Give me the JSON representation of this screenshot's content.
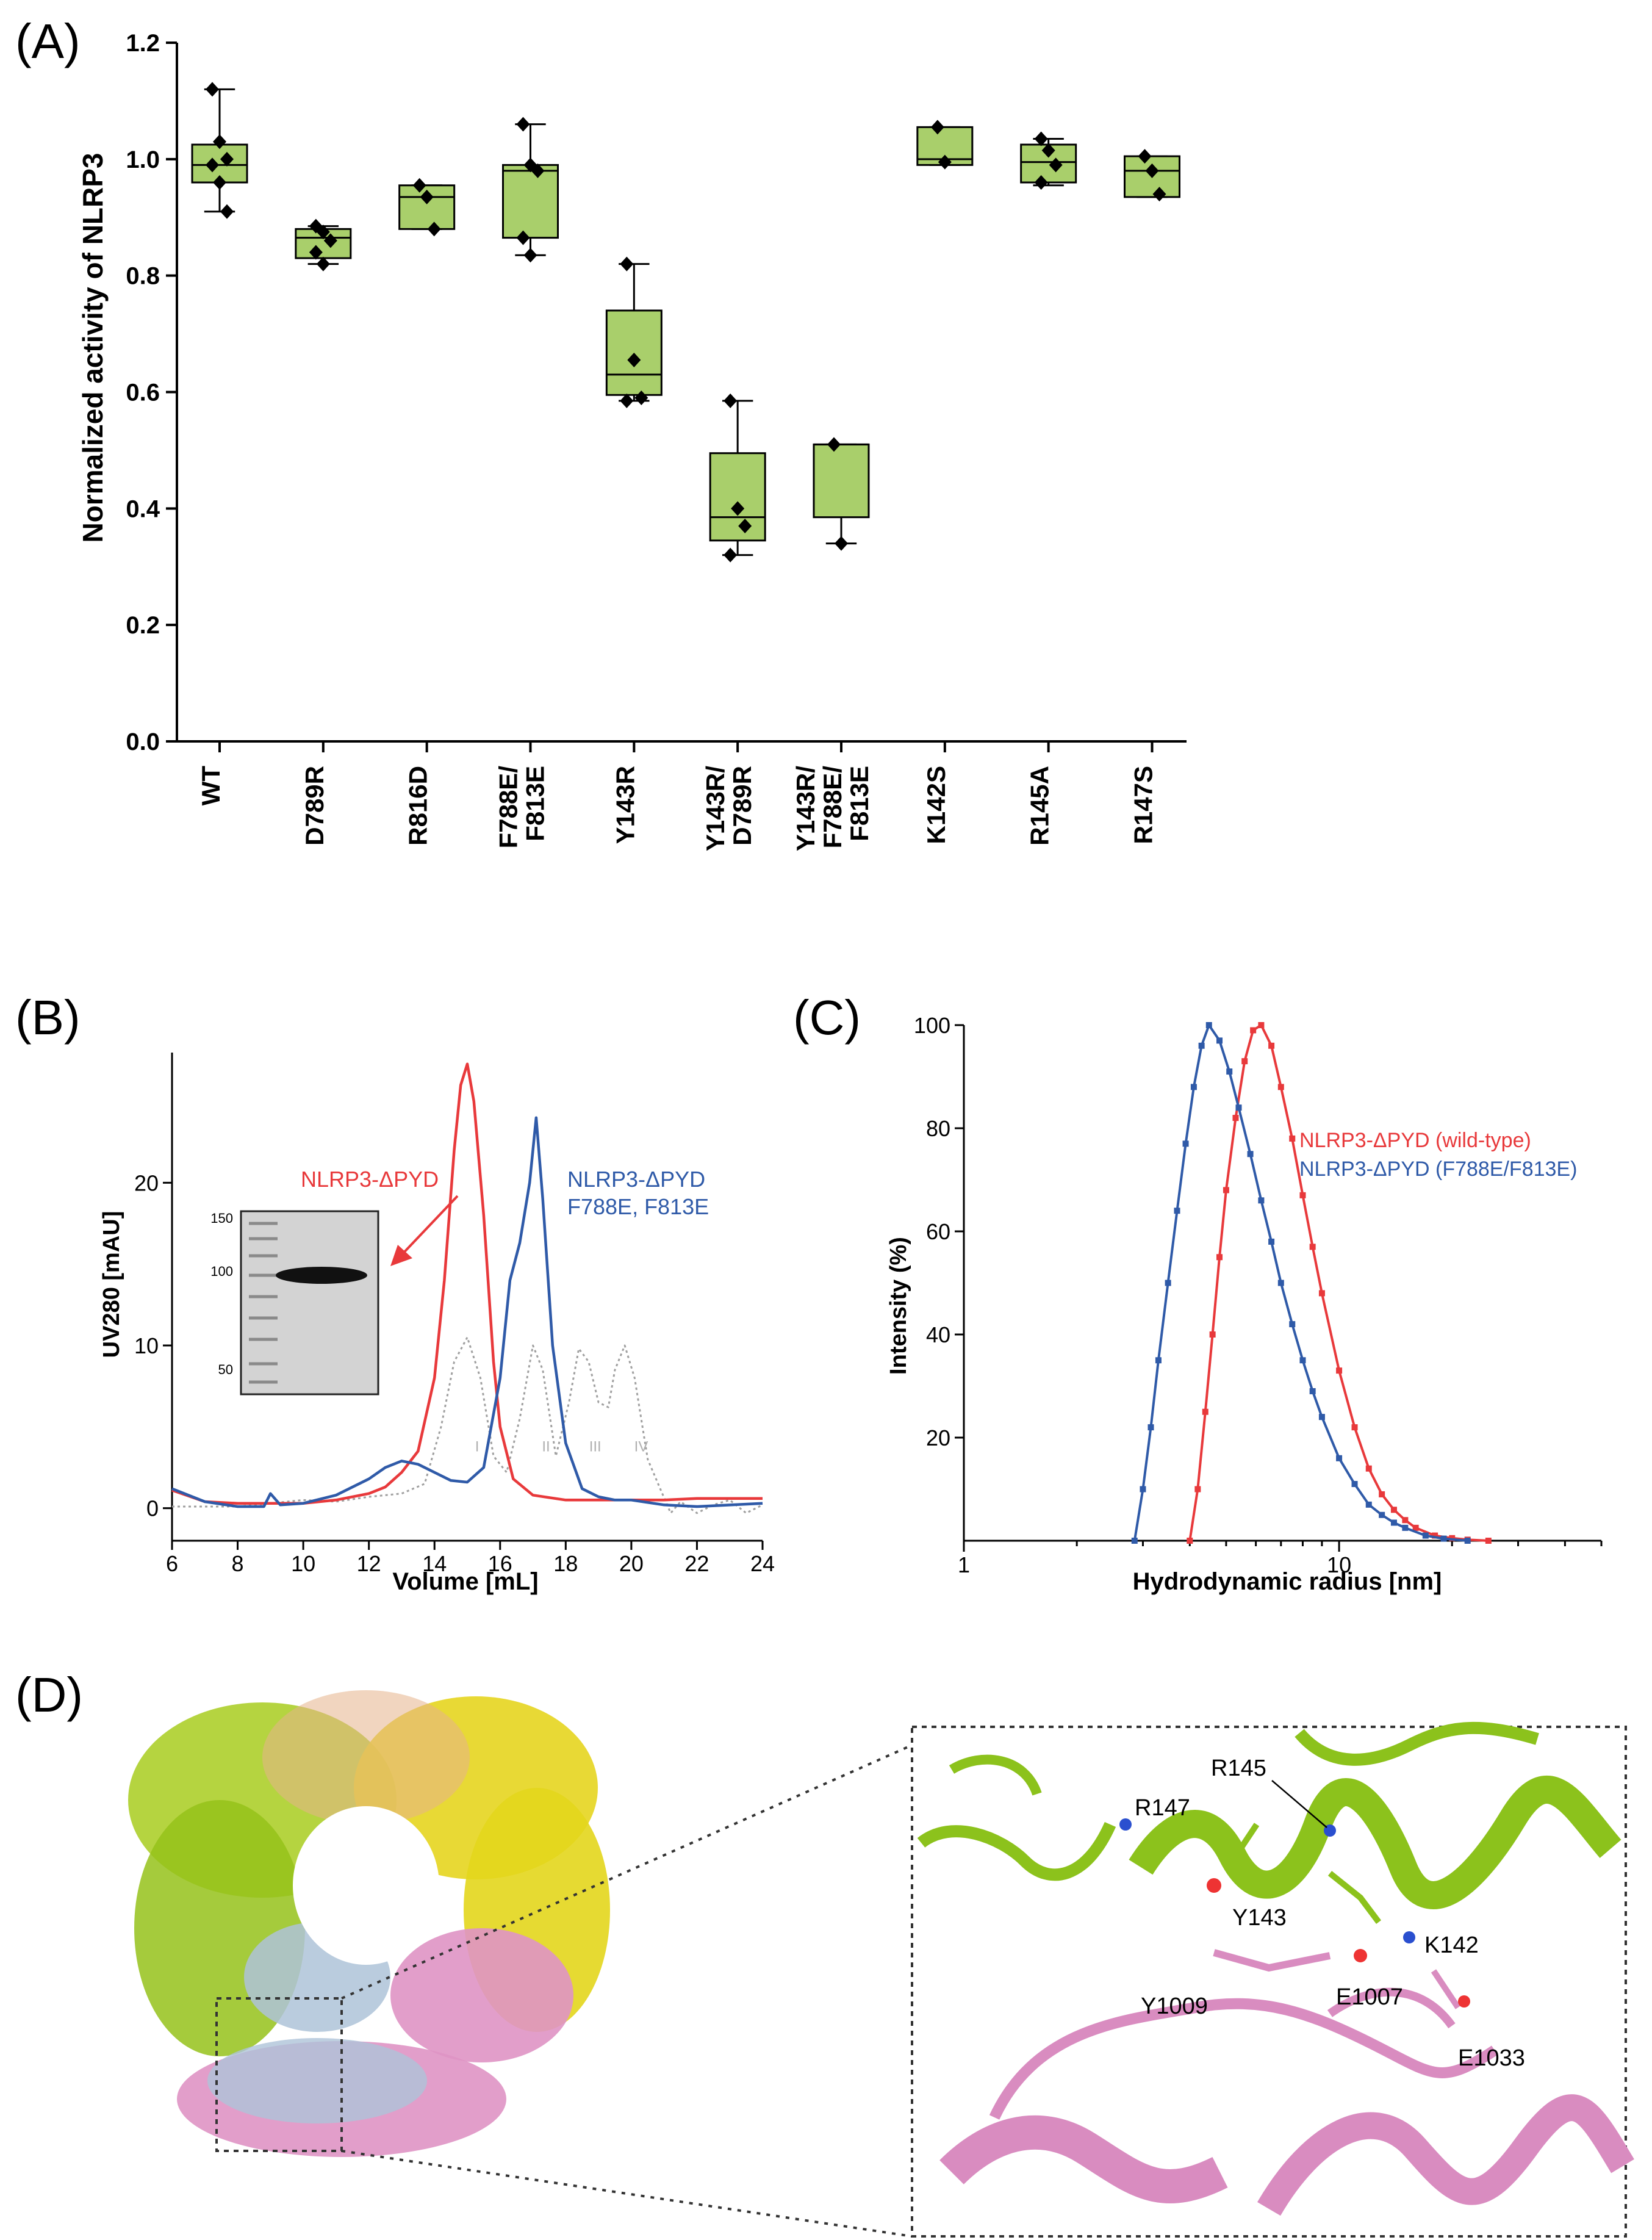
{
  "panels": {
    "a": "(A)",
    "b": "(B)",
    "c": "(C)",
    "d": "(D)"
  },
  "colors": {
    "box_fill": "#a9cf6b",
    "wt": "#e8393b",
    "mut": "#2f5aa8",
    "marker_ref": "#a0a0a0",
    "green": "#8cc21c",
    "pink": "#d98cc0"
  },
  "chart_data": [
    {
      "type": "box",
      "panel": "A",
      "ylabel": "Normalized activity of NLRP3",
      "ylim": [
        0.0,
        1.2
      ],
      "yticks": [
        "0.0",
        "0.2",
        "0.4",
        "0.6",
        "0.8",
        "1.0",
        "1.2"
      ],
      "categories": [
        "WT",
        "D789R",
        "R816D",
        "F788E/\nF813E",
        "Y143R",
        "Y143R/\nD789R",
        "Y143R/\nF788E/\nF813E",
        "K142S",
        "R145A",
        "R147S"
      ],
      "boxes": [
        {
          "min": 0.91,
          "q1": 0.96,
          "median": 0.99,
          "q3": 1.025,
          "max": 1.12,
          "points": [
            1.12,
            1.03,
            1.0,
            0.99,
            0.96,
            0.91
          ]
        },
        {
          "min": 0.82,
          "q1": 0.83,
          "median": 0.865,
          "q3": 0.88,
          "max": 0.885,
          "points": [
            0.885,
            0.875,
            0.86,
            0.84,
            0.82
          ]
        },
        {
          "min": 0.88,
          "q1": 0.88,
          "median": 0.935,
          "q3": 0.955,
          "max": 0.955,
          "points": [
            0.955,
            0.935,
            0.88
          ]
        },
        {
          "min": 0.835,
          "q1": 0.865,
          "median": 0.98,
          "q3": 0.99,
          "max": 1.06,
          "points": [
            1.06,
            0.99,
            0.98,
            0.865,
            0.835
          ]
        },
        {
          "min": 0.585,
          "q1": 0.595,
          "median": 0.63,
          "q3": 0.74,
          "max": 0.82,
          "points": [
            0.82,
            0.655,
            0.59,
            0.585
          ]
        },
        {
          "min": 0.32,
          "q1": 0.345,
          "median": 0.385,
          "q3": 0.495,
          "max": 0.585,
          "points": [
            0.585,
            0.4,
            0.37,
            0.32
          ]
        },
        {
          "min": 0.34,
          "q1": 0.385,
          "median": 0.51,
          "q3": 0.51,
          "max": 0.51,
          "points": [
            0.51,
            0.34
          ]
        },
        {
          "min": 0.99,
          "q1": 0.99,
          "median": 1.0,
          "q3": 1.055,
          "max": 1.055,
          "points": [
            1.055,
            0.995
          ]
        },
        {
          "min": 0.955,
          "q1": 0.96,
          "median": 0.995,
          "q3": 1.025,
          "max": 1.035,
          "points": [
            1.035,
            1.015,
            0.99,
            0.96
          ]
        },
        {
          "min": 0.935,
          "q1": 0.935,
          "median": 0.98,
          "q3": 1.005,
          "max": 1.005,
          "points": [
            1.005,
            0.98,
            0.94
          ]
        }
      ]
    },
    {
      "type": "line",
      "panel": "B",
      "xlabel": "Volume [mL]",
      "ylabel": "UV280 [mAU]",
      "xlim": [
        6,
        24
      ],
      "ylim": [
        -2,
        28
      ],
      "xticks": [
        6,
        8,
        10,
        12,
        14,
        16,
        18,
        20,
        22,
        24
      ],
      "yticks": [
        0,
        10,
        20
      ],
      "series": [
        {
          "name": "NLRP3-ΔPYD",
          "style": "solid",
          "x": [
            6,
            7,
            8,
            9,
            10,
            11,
            12,
            12.5,
            13,
            13.5,
            14,
            14.3,
            14.6,
            14.8,
            15,
            15.2,
            15.5,
            15.8,
            16,
            16.4,
            17,
            18,
            19,
            20,
            21,
            22,
            23,
            24
          ],
          "y": [
            1.1,
            0.4,
            0.3,
            0.3,
            0.3,
            0.5,
            0.9,
            1.3,
            2.2,
            3.5,
            8,
            14,
            22,
            26,
            27.3,
            25,
            18,
            9,
            5,
            1.8,
            0.8,
            0.5,
            0.5,
            0.5,
            0.5,
            0.6,
            0.6,
            0.6
          ]
        },
        {
          "name": "NLRP3-ΔPYD F788E, F813E",
          "style": "solid",
          "x": [
            6,
            7,
            8,
            8.8,
            9,
            9.3,
            10,
            11,
            12,
            12.5,
            13,
            13.5,
            14,
            14.5,
            15,
            15.5,
            16,
            16.3,
            16.6,
            16.9,
            17.1,
            17.3,
            17.6,
            18,
            18.5,
            19,
            19.5,
            20,
            21,
            22,
            24
          ],
          "y": [
            1.2,
            0.4,
            0.1,
            0.1,
            0.9,
            0.2,
            0.3,
            0.8,
            1.8,
            2.5,
            2.9,
            2.7,
            2.2,
            1.7,
            1.6,
            2.5,
            8,
            14,
            16.3,
            20,
            24,
            19,
            10,
            4,
            1.2,
            0.7,
            0.5,
            0.5,
            0.2,
            0.1,
            0.3
          ]
        },
        {
          "name": "markers",
          "style": "dotted",
          "x": [
            6,
            8,
            10,
            11,
            12,
            13,
            13.7,
            14.2,
            14.6,
            15,
            15.4,
            15.8,
            16.2,
            16.6,
            17,
            17.3,
            17.7,
            18.1,
            18.4,
            18.7,
            19,
            19.3,
            19.5,
            19.8,
            20.1,
            20.5,
            20.9,
            21.2,
            21.5,
            22,
            22.5,
            23,
            23.5,
            24
          ],
          "y": [
            0.1,
            0.1,
            0.5,
            0.4,
            0.7,
            0.9,
            1.5,
            5,
            9,
            10.5,
            8,
            3.2,
            2.2,
            5.5,
            10,
            8.5,
            3.2,
            6.5,
            9.8,
            9,
            6.5,
            6.2,
            8.5,
            10,
            8,
            3,
            1.1,
            -0.3,
            0.4,
            -0.3,
            0.2,
            0.5,
            -0.3,
            0.2
          ]
        }
      ],
      "labels": {
        "wt": "NLRP3-ΔPYD",
        "mut_1": "NLRP3-ΔPYD",
        "mut_2": "F788E, F813E"
      },
      "marker_labels": [
        "I",
        "II",
        "III",
        "IV"
      ],
      "gel_ladder": [
        "150",
        "100",
        "50"
      ]
    },
    {
      "type": "line",
      "panel": "C",
      "xlabel": "Hydrodynamic radius [nm]",
      "ylabel": "Intensity (%)",
      "xscale": "log",
      "xlim": [
        1,
        50
      ],
      "ylim": [
        0,
        100
      ],
      "xticks": [
        1,
        10
      ],
      "yticks": [
        20,
        40,
        60,
        80,
        100
      ],
      "series": [
        {
          "name": "NLRP3-ΔPYD (wild-type)",
          "x": [
            4.0,
            4.2,
            4.4,
            4.6,
            4.8,
            5.0,
            5.3,
            5.6,
            5.9,
            6.2,
            6.6,
            7.0,
            7.5,
            8.0,
            8.5,
            9.0,
            10,
            11,
            12,
            13,
            14,
            15,
            16,
            18,
            20,
            22,
            25
          ],
          "y": [
            0,
            10,
            25,
            40,
            55,
            68,
            82,
            93,
            99,
            100,
            96,
            88,
            78,
            67,
            57,
            48,
            33,
            22,
            14,
            9,
            6,
            4,
            2.5,
            1,
            0.5,
            0.2,
            0
          ]
        },
        {
          "name": "NLRP3-ΔPYD (F788E/F813E)",
          "x": [
            2.85,
            3.0,
            3.15,
            3.3,
            3.5,
            3.7,
            3.9,
            4.1,
            4.3,
            4.5,
            4.8,
            5.1,
            5.4,
            5.8,
            6.2,
            6.6,
            7.0,
            7.5,
            8.0,
            8.5,
            9.0,
            10,
            11,
            12,
            13,
            14,
            15,
            17,
            19,
            22
          ],
          "y": [
            0,
            10,
            22,
            35,
            50,
            64,
            77,
            88,
            96,
            100,
            97,
            91,
            84,
            75,
            66,
            58,
            50,
            42,
            35,
            29,
            24,
            16,
            11,
            7,
            5,
            3.5,
            2.5,
            1,
            0.4,
            0
          ]
        }
      ]
    }
  ],
  "structure_labels": [
    "R147",
    "R145",
    "Y143",
    "K142",
    "Y1009",
    "E1007",
    "E1033"
  ]
}
